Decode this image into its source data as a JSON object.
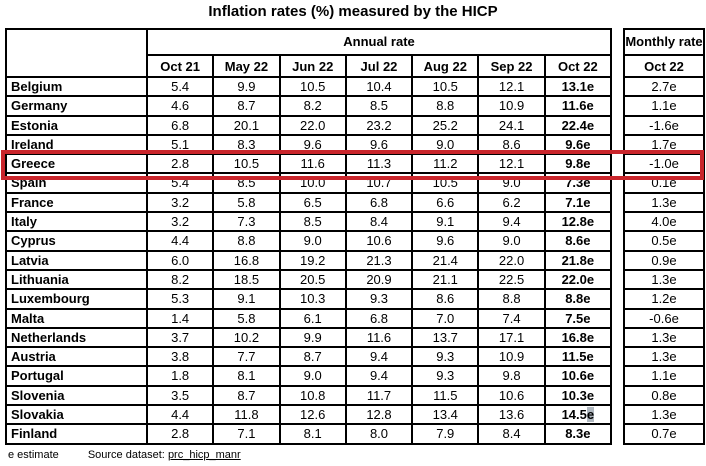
{
  "title": "Inflation rates (%) measured by the HICP",
  "annual_table": {
    "group_header": "Annual rate",
    "columns": [
      "Oct 21",
      "May 22",
      "Jun 22",
      "Jul 22",
      "Aug 22",
      "Sep 22",
      "Oct 22"
    ]
  },
  "monthly_table": {
    "group_header": "Monthly rate",
    "column_header": "Oct 22"
  },
  "rows": [
    {
      "country": "Belgium",
      "annual": [
        "5.4",
        "9.9",
        "10.5",
        "10.4",
        "10.5",
        "12.1",
        "13.1e"
      ],
      "monthly": "2.7e"
    },
    {
      "country": "Germany",
      "annual": [
        "4.6",
        "8.7",
        "8.2",
        "8.5",
        "8.8",
        "10.9",
        "11.6e"
      ],
      "monthly": "1.1e"
    },
    {
      "country": "Estonia",
      "annual": [
        "6.8",
        "20.1",
        "22.0",
        "23.2",
        "25.2",
        "24.1",
        "22.4e"
      ],
      "monthly": "-1.6e"
    },
    {
      "country": "Ireland",
      "annual": [
        "5.1",
        "8.3",
        "9.6",
        "9.6",
        "9.0",
        "8.6",
        "9.6e"
      ],
      "monthly": "1.7e"
    },
    {
      "country": "Greece",
      "annual": [
        "2.8",
        "10.5",
        "11.6",
        "11.3",
        "11.2",
        "12.1",
        "9.8e"
      ],
      "monthly": "-1.0e"
    },
    {
      "country": "Spain",
      "annual": [
        "5.4",
        "8.5",
        "10.0",
        "10.7",
        "10.5",
        "9.0",
        "7.3e"
      ],
      "monthly": "0.1e"
    },
    {
      "country": "France",
      "annual": [
        "3.2",
        "5.8",
        "6.5",
        "6.8",
        "6.6",
        "6.2",
        "7.1e"
      ],
      "monthly": "1.3e"
    },
    {
      "country": "Italy",
      "annual": [
        "3.2",
        "7.3",
        "8.5",
        "8.4",
        "9.1",
        "9.4",
        "12.8e"
      ],
      "monthly": "4.0e"
    },
    {
      "country": "Cyprus",
      "annual": [
        "4.4",
        "8.8",
        "9.0",
        "10.6",
        "9.6",
        "9.0",
        "8.6e"
      ],
      "monthly": "0.5e"
    },
    {
      "country": "Latvia",
      "annual": [
        "6.0",
        "16.8",
        "19.2",
        "21.3",
        "21.4",
        "22.0",
        "21.8e"
      ],
      "monthly": "0.9e"
    },
    {
      "country": "Lithuania",
      "annual": [
        "8.2",
        "18.5",
        "20.5",
        "20.9",
        "21.1",
        "22.5",
        "22.0e"
      ],
      "monthly": "1.3e"
    },
    {
      "country": "Luxembourg",
      "annual": [
        "5.3",
        "9.1",
        "10.3",
        "9.3",
        "8.6",
        "8.8",
        "8.8e"
      ],
      "monthly": "1.2e"
    },
    {
      "country": "Malta",
      "annual": [
        "1.4",
        "5.8",
        "6.1",
        "6.8",
        "7.0",
        "7.4",
        "7.5e"
      ],
      "monthly": "-0.6e"
    },
    {
      "country": "Netherlands",
      "annual": [
        "3.7",
        "10.2",
        "9.9",
        "11.6",
        "13.7",
        "17.1",
        "16.8e"
      ],
      "monthly": "1.3e"
    },
    {
      "country": "Austria",
      "annual": [
        "3.8",
        "7.7",
        "8.7",
        "9.4",
        "9.3",
        "10.9",
        "11.5e"
      ],
      "monthly": "1.3e"
    },
    {
      "country": "Portugal",
      "annual": [
        "1.8",
        "8.1",
        "9.0",
        "9.4",
        "9.3",
        "9.8",
        "10.6e"
      ],
      "monthly": "1.1e"
    },
    {
      "country": "Slovenia",
      "annual": [
        "3.5",
        "8.7",
        "10.8",
        "11.7",
        "11.5",
        "10.6",
        "10.3e"
      ],
      "monthly": "0.8e"
    },
    {
      "country": "Slovakia",
      "annual": [
        "4.4",
        "11.8",
        "12.6",
        "12.8",
        "13.4",
        "13.6",
        "14.5e"
      ],
      "monthly": "1.3e"
    },
    {
      "country": "Finland",
      "annual": [
        "2.8",
        "7.1",
        "8.1",
        "8.0",
        "7.9",
        "8.4",
        "8.3e"
      ],
      "monthly": "0.7e"
    }
  ],
  "highlight": {
    "country": "Greece",
    "color": "#c9252b"
  },
  "selection_artifact": {
    "country": "Slovakia",
    "column": "Oct 22",
    "selection_color": "#b0b8c0"
  },
  "footer": {
    "note": "e estimate",
    "source_label": "Source dataset:",
    "source_link": "prc_hicp_manr"
  }
}
